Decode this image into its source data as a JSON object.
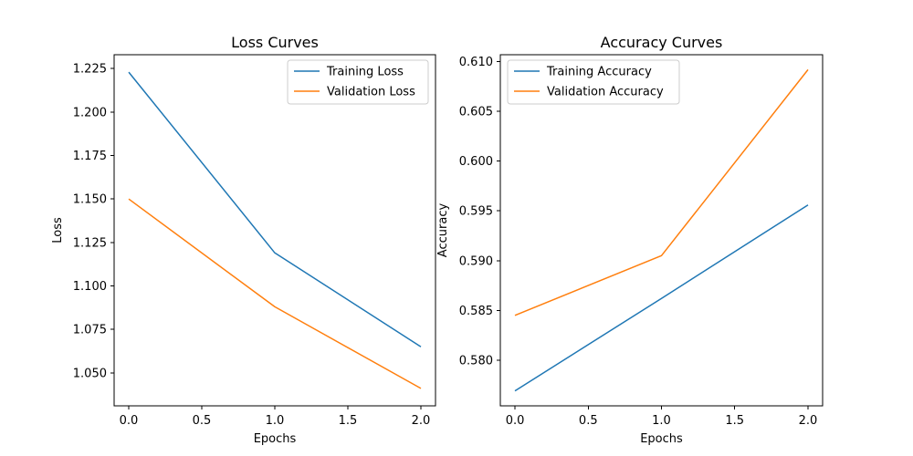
{
  "chart_data": [
    {
      "type": "line",
      "title": "Loss Curves",
      "xlabel": "Epochs",
      "ylabel": "Loss",
      "x": [
        0,
        1,
        2
      ],
      "xlim": [
        -0.1,
        2.1
      ],
      "ylim": [
        1.031,
        1.233
      ],
      "xticks": [
        0.0,
        0.5,
        1.0,
        1.5,
        2.0
      ],
      "xtick_labels": [
        "0.0",
        "0.5",
        "1.0",
        "1.5",
        "2.0"
      ],
      "yticks": [
        1.05,
        1.075,
        1.1,
        1.125,
        1.15,
        1.175,
        1.2,
        1.225
      ],
      "ytick_labels": [
        "1.050",
        "1.075",
        "1.100",
        "1.125",
        "1.150",
        "1.175",
        "1.200",
        "1.225"
      ],
      "grid": false,
      "legend_position": "top-right",
      "series": [
        {
          "name": "Training Loss",
          "color": "#1f77b4",
          "values": [
            1.223,
            1.119,
            1.065
          ]
        },
        {
          "name": "Validation Loss",
          "color": "#ff7f0e",
          "values": [
            1.15,
            1.088,
            1.041
          ]
        }
      ]
    },
    {
      "type": "line",
      "title": "Accuracy Curves",
      "xlabel": "Epochs",
      "ylabel": "Accuracy",
      "x": [
        0,
        1,
        2
      ],
      "xlim": [
        -0.1,
        2.1
      ],
      "ylim": [
        0.5754,
        0.6107
      ],
      "xticks": [
        0.0,
        0.5,
        1.0,
        1.5,
        2.0
      ],
      "xtick_labels": [
        "0.0",
        "0.5",
        "1.0",
        "1.5",
        "2.0"
      ],
      "yticks": [
        0.58,
        0.585,
        0.59,
        0.595,
        0.6,
        0.605,
        0.61
      ],
      "ytick_labels": [
        "0.580",
        "0.585",
        "0.590",
        "0.595",
        "0.600",
        "0.605",
        "0.610"
      ],
      "grid": false,
      "legend_position": "top-left",
      "series": [
        {
          "name": "Training Accuracy",
          "color": "#1f77b4",
          "values": [
            0.5769,
            0.5862,
            0.5956
          ]
        },
        {
          "name": "Validation Accuracy",
          "color": "#ff7f0e",
          "values": [
            0.5845,
            0.5905,
            0.6092
          ]
        }
      ]
    }
  ]
}
